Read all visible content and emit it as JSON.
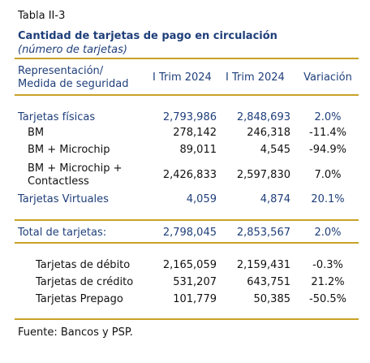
{
  "header": {
    "label": "Tabla II-3",
    "title": "Cantidad de tarjetas de pago en circulación",
    "subtitle": "(número de tarjetas)"
  },
  "table": {
    "columns": [
      [
        "Representación/",
        "Medida de seguridad"
      ],
      "I Trim 2024",
      "I Trim 2024",
      "Variación"
    ],
    "rows": [
      {
        "label": [
          "Tarjetas físicas"
        ],
        "values": [
          "2,793,986",
          "2,848,693",
          "2.0%"
        ]
      },
      {
        "label": [
          "BM"
        ],
        "values": [
          "278,142",
          "246,318",
          "-11.4%"
        ]
      },
      {
        "label": [
          "BM + Microchip"
        ],
        "values": [
          "89,011",
          "4,545",
          "-94.9%"
        ]
      },
      {
        "label": [
          "BM + Microchip +",
          "Contactless"
        ],
        "values": [
          "2,426,833",
          "2,597,830",
          "7.0%"
        ]
      },
      {
        "label": [
          "Tarjetas Virtuales"
        ],
        "values": [
          "4,059",
          "4,874",
          "20.1%"
        ]
      },
      {
        "label": [
          "Total de tarjetas:"
        ],
        "values": [
          "2,798,045",
          "2,853,567",
          "2.0%"
        ]
      },
      {
        "label": [
          "Tarjetas de débito"
        ],
        "values": [
          "2,165,059",
          "2,159,431",
          "-0.3%"
        ]
      },
      {
        "label": [
          "Tarjetas de crédito"
        ],
        "values": [
          "531,207",
          "643,751",
          "21.2%"
        ]
      },
      {
        "label": [
          "Tarjetas Prepago"
        ],
        "values": [
          "101,779",
          "50,385",
          "-50.5%"
        ]
      }
    ]
  },
  "footer": {
    "source": "Fuente: Bancos y PSP."
  }
}
